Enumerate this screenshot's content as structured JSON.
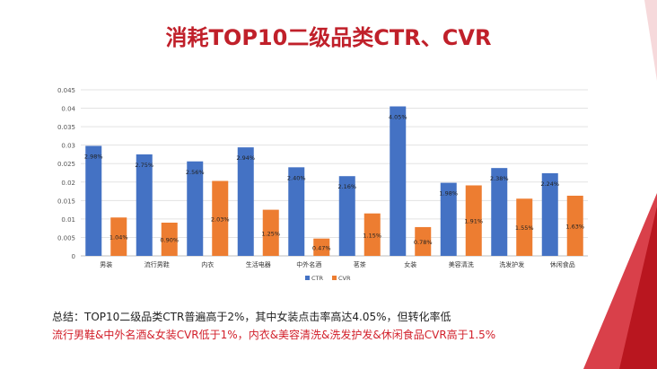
{
  "title": "消耗TOP10二级品类CTR、CVR",
  "colors": {
    "ctr": "#4472c4",
    "cvr": "#ed7d31",
    "title": "#c0202a",
    "accent": "#d21f2a"
  },
  "chart_data": {
    "type": "bar",
    "categories": [
      "男装",
      "流行男鞋",
      "内衣",
      "生活电器",
      "中外名酒",
      "茗茶",
      "女装",
      "美容清洗",
      "洗发护发",
      "休闲食品"
    ],
    "series": [
      {
        "name": "CTR",
        "values": [
          0.0298,
          0.0275,
          0.0256,
          0.0294,
          0.024,
          0.0216,
          0.0405,
          0.0198,
          0.0238,
          0.0224
        ],
        "labels": [
          "2.98%",
          "2.75%",
          "2.56%",
          "2.94%",
          "2.40%",
          "2.16%",
          "4.05%",
          "1.98%",
          "2.38%",
          "2.24%"
        ]
      },
      {
        "name": "CVR",
        "values": [
          0.0104,
          0.009,
          0.0203,
          0.0125,
          0.0047,
          0.0115,
          0.0078,
          0.0191,
          0.0155,
          0.0163
        ],
        "labels": [
          "1.04%",
          "0.90%",
          "2.03%",
          "1.25%",
          "0.47%",
          "1.15%",
          "0.78%",
          "1.91%",
          "1.55%",
          "1.63%"
        ]
      }
    ],
    "ylim": [
      0,
      0.045
    ],
    "yticks": [
      "0",
      "0.005",
      "0.01",
      "0.015",
      "0.02",
      "0.025",
      "0.03",
      "0.035",
      "0.04",
      "0.045"
    ],
    "grid": true,
    "legend": "bottom"
  },
  "summary": {
    "line1": "总结：TOP10二级品类CTR普遍高于2%，其中女装点击率高达4.05%，但转化率低",
    "line2_part1": "流行男鞋&中外名酒&女装CVR低于1%，",
    "line2_part2": "内衣&美容清洗&洗发护发&休闲食品CVR高于1.5%"
  }
}
